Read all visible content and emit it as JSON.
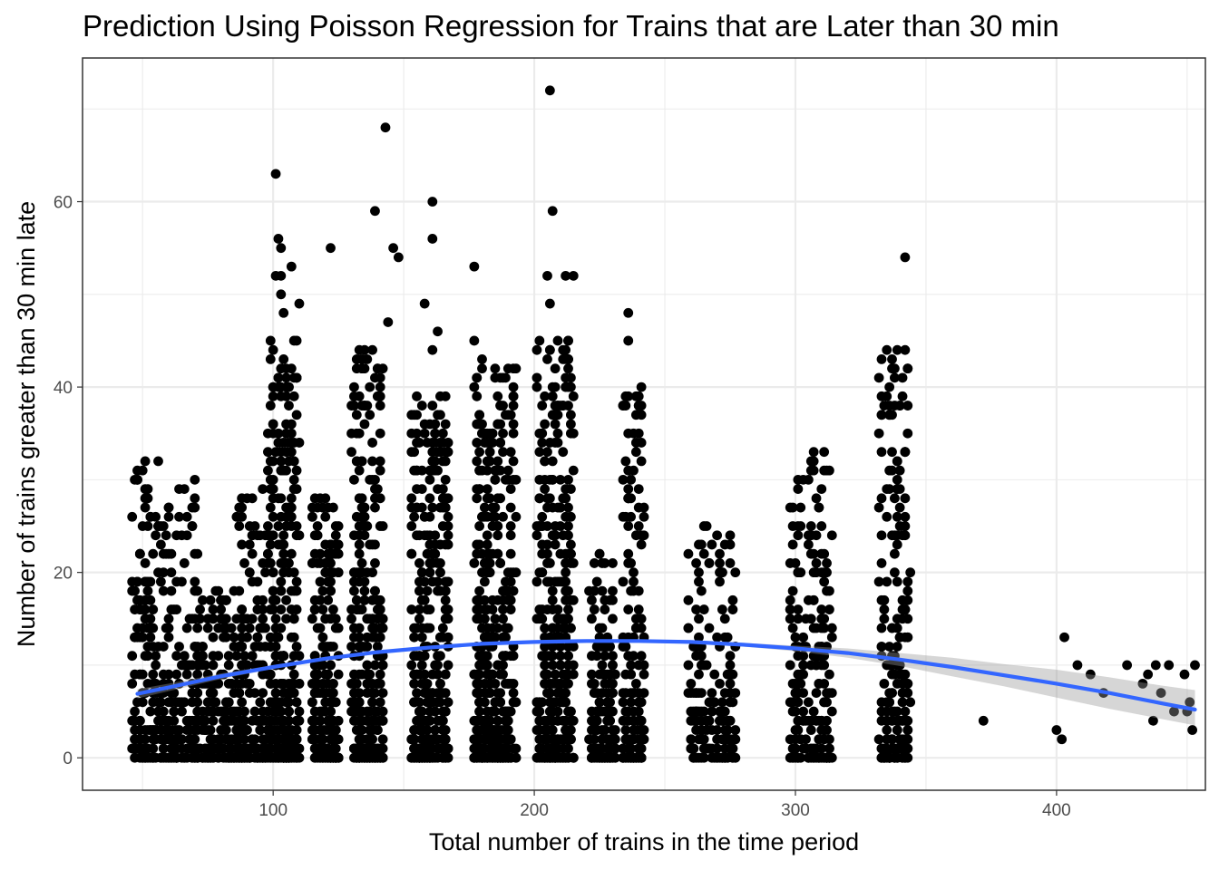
{
  "chart_data": {
    "type": "scatter",
    "title": "Prediction Using Poisson Regression for Trains that are Later than 30 min",
    "xlabel": "Total number of trains in the time period",
    "ylabel": "Number of trains greater than 30 min late",
    "xlim": [
      27,
      457
    ],
    "ylim": [
      -3.5,
      75.5
    ],
    "x_ticks": [
      100,
      200,
      300,
      400
    ],
    "x_tick_labels": [
      "100",
      "200",
      "300",
      "400"
    ],
    "y_ticks": [
      0,
      20,
      40,
      60
    ],
    "y_tick_labels": [
      "0",
      "20",
      "40",
      "60"
    ],
    "grid": true,
    "legend": "none",
    "colors": {
      "points": "#000000",
      "fit_line": "#3366FF",
      "ribbon": "#999999",
      "grid": "#ebebeb",
      "panel_border": "#333333"
    },
    "highlight_points": [
      {
        "x": 206,
        "y": 72
      },
      {
        "x": 143,
        "y": 68
      },
      {
        "x": 101,
        "y": 63
      },
      {
        "x": 139,
        "y": 59
      },
      {
        "x": 207,
        "y": 59
      },
      {
        "x": 161,
        "y": 60
      },
      {
        "x": 161,
        "y": 56
      },
      {
        "x": 102,
        "y": 56
      },
      {
        "x": 103,
        "y": 55
      },
      {
        "x": 122,
        "y": 55
      },
      {
        "x": 146,
        "y": 55
      },
      {
        "x": 148,
        "y": 54
      },
      {
        "x": 342,
        "y": 54
      },
      {
        "x": 107,
        "y": 53
      },
      {
        "x": 177,
        "y": 53
      },
      {
        "x": 101,
        "y": 52
      },
      {
        "x": 103,
        "y": 52
      },
      {
        "x": 205,
        "y": 52
      },
      {
        "x": 212,
        "y": 52
      },
      {
        "x": 215,
        "y": 52
      },
      {
        "x": 103,
        "y": 50
      },
      {
        "x": 104,
        "y": 48
      },
      {
        "x": 110,
        "y": 49
      },
      {
        "x": 158,
        "y": 49
      },
      {
        "x": 206,
        "y": 49
      },
      {
        "x": 236,
        "y": 48
      },
      {
        "x": 144,
        "y": 47
      },
      {
        "x": 163,
        "y": 46
      },
      {
        "x": 161,
        "y": 44
      },
      {
        "x": 133,
        "y": 44
      },
      {
        "x": 135,
        "y": 44
      },
      {
        "x": 339,
        "y": 44
      },
      {
        "x": 342,
        "y": 44
      },
      {
        "x": 236,
        "y": 45
      },
      {
        "x": 177,
        "y": 45
      },
      {
        "x": 403,
        "y": 13
      },
      {
        "x": 400,
        "y": 3
      },
      {
        "x": 402,
        "y": 2
      },
      {
        "x": 372,
        "y": 4
      },
      {
        "x": 408,
        "y": 10
      },
      {
        "x": 413,
        "y": 9
      },
      {
        "x": 418,
        "y": 7
      },
      {
        "x": 427,
        "y": 10
      },
      {
        "x": 433,
        "y": 8
      },
      {
        "x": 435,
        "y": 9
      },
      {
        "x": 437,
        "y": 4
      },
      {
        "x": 438,
        "y": 10
      },
      {
        "x": 440,
        "y": 7
      },
      {
        "x": 443,
        "y": 10
      },
      {
        "x": 445,
        "y": 5
      },
      {
        "x": 449,
        "y": 9
      },
      {
        "x": 451,
        "y": 6
      },
      {
        "x": 452,
        "y": 3
      },
      {
        "x": 453,
        "y": 10
      },
      {
        "x": 450,
        "y": 5
      }
    ],
    "point_clusters": [
      {
        "x_center": 52,
        "x_spread": 6,
        "y_max": 32,
        "count": 160
      },
      {
        "x_center": 65,
        "x_spread": 7,
        "y_max": 30,
        "count": 170
      },
      {
        "x_center": 80,
        "x_spread": 8,
        "y_max": 18,
        "count": 190
      },
      {
        "x_center": 92,
        "x_spread": 6,
        "y_max": 29,
        "count": 160
      },
      {
        "x_center": 104,
        "x_spread": 6,
        "y_max": 45,
        "count": 320
      },
      {
        "x_center": 120,
        "x_spread": 5,
        "y_max": 29,
        "count": 220
      },
      {
        "x_center": 136,
        "x_spread": 6,
        "y_max": 44,
        "count": 300
      },
      {
        "x_center": 160,
        "x_spread": 7,
        "y_max": 40,
        "count": 340
      },
      {
        "x_center": 185,
        "x_spread": 8,
        "y_max": 43,
        "count": 420
      },
      {
        "x_center": 208,
        "x_spread": 7,
        "y_max": 45,
        "count": 360
      },
      {
        "x_center": 226,
        "x_spread": 5,
        "y_max": 22,
        "count": 150
      },
      {
        "x_center": 238,
        "x_spread": 4,
        "y_max": 40,
        "count": 160
      },
      {
        "x_center": 268,
        "x_spread": 9,
        "y_max": 25,
        "count": 180
      },
      {
        "x_center": 306,
        "x_spread": 8,
        "y_max": 33,
        "count": 210
      },
      {
        "x_center": 338,
        "x_spread": 6,
        "y_max": 44,
        "count": 210
      }
    ],
    "fit_line": {
      "name": "",
      "x": [
        48,
        60,
        80,
        100,
        120,
        140,
        160,
        180,
        200,
        220,
        240,
        260,
        280,
        300,
        320,
        340,
        360,
        380,
        400,
        420,
        440,
        453
      ],
      "y": [
        6.9,
        7.6,
        8.8,
        9.8,
        10.7,
        11.4,
        11.9,
        12.3,
        12.5,
        12.6,
        12.6,
        12.5,
        12.2,
        11.8,
        11.3,
        10.6,
        9.8,
        8.9,
        8.0,
        7.0,
        5.9,
        5.2
      ],
      "ci_lower": [
        6.4,
        7.2,
        8.5,
        9.6,
        10.5,
        11.2,
        11.8,
        12.2,
        12.4,
        12.5,
        12.5,
        12.3,
        12.0,
        11.5,
        10.8,
        9.9,
        8.8,
        7.7,
        6.5,
        5.3,
        4.2,
        3.5
      ],
      "ci_upper": [
        7.4,
        8.0,
        9.1,
        10.0,
        10.9,
        11.6,
        12.0,
        12.4,
        12.6,
        12.7,
        12.7,
        12.7,
        12.4,
        12.1,
        11.8,
        11.3,
        10.8,
        10.1,
        9.5,
        8.7,
        7.8,
        7.3
      ]
    }
  }
}
